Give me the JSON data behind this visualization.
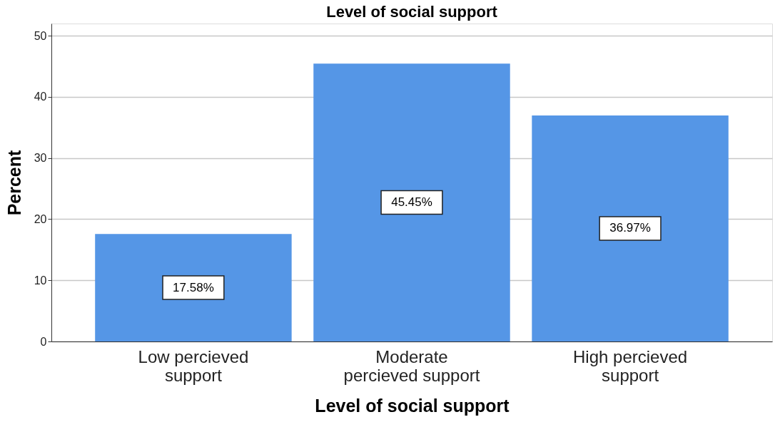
{
  "chart_data": {
    "type": "bar",
    "title": "Level of social support",
    "xlabel": "Level of social support",
    "ylabel": "Percent",
    "categories": [
      "Low percieved support",
      "Moderate percieved support",
      "High percieved support"
    ],
    "values": [
      17.58,
      45.45,
      36.97
    ],
    "color": "#5596e6",
    "value_labels": [
      "17.58%",
      "45.45%",
      "36.97%"
    ],
    "ylim": [
      0,
      52
    ],
    "yticks": [
      0,
      10,
      20,
      30,
      40,
      50
    ],
    "grid": "y"
  }
}
